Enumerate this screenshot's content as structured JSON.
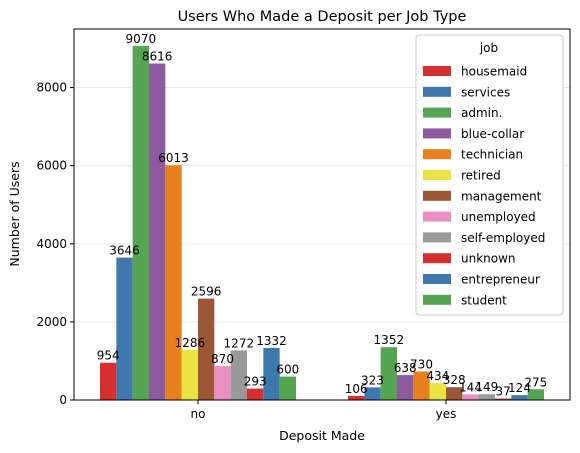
{
  "chart_data": {
    "type": "bar",
    "title": "Users Who Made a Deposit per Job Type",
    "xlabel": "Deposit Made",
    "ylabel": "Number of Users",
    "categories": [
      "no",
      "yes"
    ],
    "ylim": [
      0,
      9500
    ],
    "yticks": [
      0,
      2000,
      4000,
      6000,
      8000
    ],
    "grid": "horizontal",
    "legend": {
      "title": "job",
      "placement": "top-right"
    },
    "series": [
      {
        "name": "housemaid",
        "color": "#d62f2f",
        "values": [
          954,
          106
        ]
      },
      {
        "name": "services",
        "color": "#3f78ad",
        "values": [
          3646,
          323
        ]
      },
      {
        "name": "admin.",
        "color": "#56a552",
        "values": [
          9070,
          1352
        ]
      },
      {
        "name": "blue-collar",
        "color": "#8e5a9e",
        "values": [
          8616,
          638
        ]
      },
      {
        "name": "technician",
        "color": "#e7811d",
        "values": [
          6013,
          730
        ]
      },
      {
        "name": "retired",
        "color": "#e9e441",
        "values": [
          1286,
          434
        ]
      },
      {
        "name": "management",
        "color": "#9b5735",
        "values": [
          2596,
          328
        ]
      },
      {
        "name": "unemployed",
        "color": "#e98fc2",
        "values": [
          870,
          144
        ]
      },
      {
        "name": "self-employed",
        "color": "#999999",
        "values": [
          1272,
          149
        ]
      },
      {
        "name": "unknown",
        "color": "#d62f2f",
        "values": [
          293,
          37
        ]
      },
      {
        "name": "entrepreneur",
        "color": "#3f78ad",
        "values": [
          1332,
          124
        ]
      },
      {
        "name": "student",
        "color": "#56a552",
        "values": [
          600,
          275
        ]
      }
    ]
  }
}
